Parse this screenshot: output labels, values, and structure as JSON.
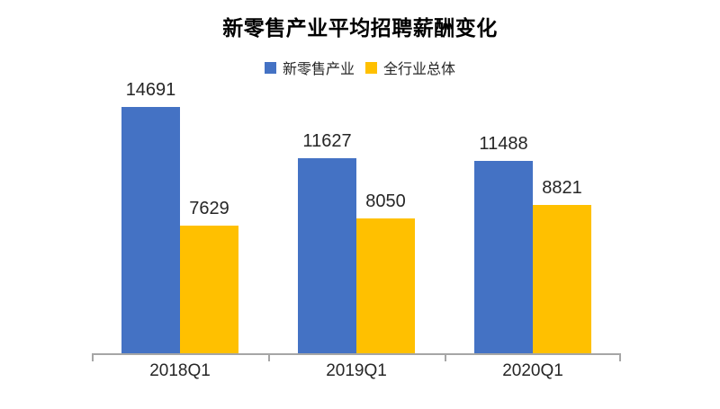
{
  "title": "新零售产业平均招聘薪酬变化",
  "legend": [
    {
      "id": "new-retail",
      "label": "新零售产业",
      "color": "#4472C4"
    },
    {
      "id": "all-industry",
      "label": "全行业总体",
      "color": "#FFC000"
    }
  ],
  "colors": {
    "series_blue": "#4472C4",
    "series_gold": "#FFC000",
    "axis": "#A6A6A6",
    "text": "#262626",
    "title": "#000000",
    "background": "#FFFFFF"
  },
  "chart_data": {
    "type": "bar",
    "categories": [
      "2018Q1",
      "2019Q1",
      "2020Q1"
    ],
    "series": [
      {
        "id": "new-retail",
        "name": "新零售产业",
        "color": "#4472C4",
        "values": [
          14691,
          11627,
          11488
        ]
      },
      {
        "id": "all-industry",
        "name": "全行业总体",
        "color": "#FFC000",
        "values": [
          7629,
          8050,
          8821
        ]
      }
    ],
    "title": "新零售产业平均招聘薪酬变化",
    "xlabel": "",
    "ylabel": "",
    "ylim": [
      0,
      15800
    ],
    "grid": false,
    "legend_position": "top",
    "bar_value_labels": true
  }
}
